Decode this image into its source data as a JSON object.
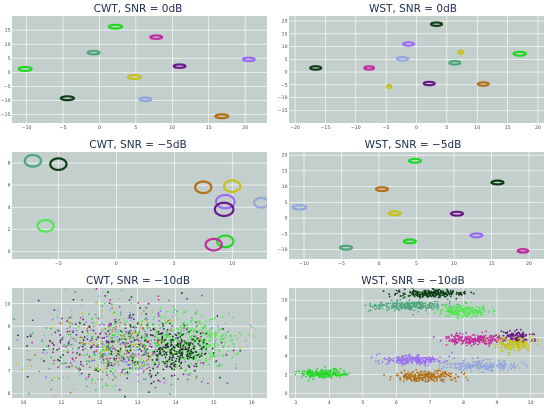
{
  "colors": {
    "plot_bg": "#c3cfcd",
    "grid": "#ffffff",
    "palette": [
      "#24d624",
      "#4ba77a",
      "#6a1a8a",
      "#c22c9c",
      "#0d3e14",
      "#c6c01c",
      "#93a7dd",
      "#9a6df4",
      "#b47016",
      "#54e654"
    ]
  },
  "chart_data": [
    {
      "type": "scatter",
      "title": "CWT, SNR = 0dB",
      "xlim": [
        -12,
        23
      ],
      "ylim": [
        -18,
        20
      ],
      "xticks": [
        -10,
        -5,
        0,
        5,
        10,
        15,
        20
      ],
      "yticks": [
        -15,
        -10,
        -5,
        0,
        5,
        10,
        15
      ],
      "clusters": [
        {
          "x": -10.2,
          "y": 1.2,
          "r": 0.9,
          "color": "#24d624"
        },
        {
          "x": -0.8,
          "y": 7.0,
          "r": 0.8,
          "color": "#4ba77a"
        },
        {
          "x": 2.2,
          "y": 16.2,
          "r": 0.9,
          "color": "#24d624"
        },
        {
          "x": 7.8,
          "y": 12.5,
          "r": 0.8,
          "color": "#c22c9c"
        },
        {
          "x": 20.5,
          "y": 4.6,
          "r": 0.8,
          "color": "#9a6df4"
        },
        {
          "x": 11.0,
          "y": 2.2,
          "r": 0.8,
          "color": "#6a1a8a"
        },
        {
          "x": 4.8,
          "y": -1.7,
          "r": 0.9,
          "color": "#c6c01c"
        },
        {
          "x": -4.4,
          "y": -9.2,
          "r": 0.9,
          "color": "#0d3e14"
        },
        {
          "x": 6.3,
          "y": -9.6,
          "r": 0.8,
          "color": "#93a7dd"
        },
        {
          "x": 16.8,
          "y": -15.6,
          "r": 0.9,
          "color": "#b47016"
        }
      ]
    },
    {
      "type": "scatter",
      "title": "WST, SNR = 0dB",
      "xlim": [
        -21,
        21
      ],
      "ylim": [
        -20,
        22
      ],
      "xticks": [
        -20,
        -15,
        -10,
        -5,
        0,
        5,
        10,
        15,
        20
      ],
      "yticks": [
        -15,
        -10,
        -5,
        0,
        5,
        10,
        15,
        20
      ],
      "clusters": [
        {
          "x": 3.3,
          "y": 18.8,
          "r": 0.9,
          "color": "#0d3e14"
        },
        {
          "x": -1.3,
          "y": 11.0,
          "r": 0.9,
          "color": "#9a6df4"
        },
        {
          "x": 7.3,
          "y": 7.8,
          "r": 0.4,
          "color": "#c6c01c"
        },
        {
          "x": 17.0,
          "y": 7.2,
          "r": 1.0,
          "color": "#24d624"
        },
        {
          "x": -2.3,
          "y": 5.2,
          "r": 0.9,
          "color": "#93a7dd"
        },
        {
          "x": 6.3,
          "y": 3.6,
          "r": 0.9,
          "color": "#4ba77a"
        },
        {
          "x": -16.6,
          "y": 1.6,
          "r": 0.9,
          "color": "#0d3e14"
        },
        {
          "x": -7.8,
          "y": 1.6,
          "r": 0.8,
          "color": "#c22c9c"
        },
        {
          "x": -4.5,
          "y": -5.7,
          "r": 0.3,
          "color": "#c6c01c"
        },
        {
          "x": 2.1,
          "y": -4.5,
          "r": 0.9,
          "color": "#6a1a8a"
        },
        {
          "x": 11.0,
          "y": -4.7,
          "r": 0.9,
          "color": "#b47016"
        }
      ]
    },
    {
      "type": "scatter",
      "title": "CWT, SNR = −5dB",
      "xlim": [
        -9,
        13
      ],
      "ylim": [
        -0.7,
        9.0
      ],
      "xticks": [
        -5,
        0,
        5,
        10
      ],
      "yticks": [
        0,
        2,
        4,
        6,
        8
      ],
      "clusters": [
        {
          "x": -7.2,
          "y": 8.2,
          "r": 0.7,
          "color": "#4ba77a"
        },
        {
          "x": -5.0,
          "y": 7.9,
          "r": 0.7,
          "color": "#0d3e14"
        },
        {
          "x": 7.5,
          "y": 5.8,
          "r": 0.7,
          "color": "#b47016"
        },
        {
          "x": 10.0,
          "y": 5.9,
          "r": 0.7,
          "color": "#c6c01c"
        },
        {
          "x": 9.4,
          "y": 4.5,
          "r": 0.8,
          "color": "#9a6df4"
        },
        {
          "x": 9.3,
          "y": 3.8,
          "r": 0.8,
          "color": "#6a1a8a"
        },
        {
          "x": 12.5,
          "y": 4.4,
          "r": 0.6,
          "color": "#93a7dd"
        },
        {
          "x": -6.1,
          "y": 2.3,
          "r": 0.7,
          "color": "#54e654"
        },
        {
          "x": 9.4,
          "y": 0.9,
          "r": 0.7,
          "color": "#24d624"
        },
        {
          "x": 8.4,
          "y": 0.6,
          "r": 0.7,
          "color": "#c22c9c"
        }
      ]
    },
    {
      "type": "scatter",
      "title": "WST, SNR = −5dB",
      "xlim": [
        -12,
        22
      ],
      "ylim": [
        -13,
        21
      ],
      "xticks": [
        -10,
        -5,
        0,
        5,
        10,
        15,
        20
      ],
      "yticks": [
        -10,
        -5,
        0,
        5,
        10,
        15,
        20
      ],
      "clusters": [
        {
          "x": 4.8,
          "y": 18.2,
          "r": 0.8,
          "color": "#24d624"
        },
        {
          "x": 15.8,
          "y": 11.3,
          "r": 0.8,
          "color": "#0d3e14"
        },
        {
          "x": 0.4,
          "y": 9.2,
          "r": 0.8,
          "color": "#b47016"
        },
        {
          "x": -10.6,
          "y": 3.4,
          "r": 0.9,
          "color": "#93a7dd"
        },
        {
          "x": 2.1,
          "y": 1.5,
          "r": 0.8,
          "color": "#c6c01c"
        },
        {
          "x": 10.4,
          "y": 1.4,
          "r": 0.8,
          "color": "#6a1a8a"
        },
        {
          "x": 4.1,
          "y": -7.4,
          "r": 0.8,
          "color": "#24d624"
        },
        {
          "x": 13.0,
          "y": -5.5,
          "r": 0.8,
          "color": "#9a6df4"
        },
        {
          "x": -4.4,
          "y": -9.4,
          "r": 0.8,
          "color": "#4ba77a"
        },
        {
          "x": 19.2,
          "y": -10.4,
          "r": 0.7,
          "color": "#c22c9c"
        }
      ]
    },
    {
      "type": "scatter",
      "title": "CWT, SNR = −10dB",
      "xlim": [
        9.7,
        16.4
      ],
      "ylim": [
        5.8,
        10.7
      ],
      "xticks": [
        10,
        11,
        12,
        13,
        14,
        15,
        16
      ],
      "yticks": [
        6,
        7,
        8,
        9,
        10
      ],
      "clusters": [
        {
          "x": 12.6,
          "y": 8.1,
          "rx": 2.6,
          "ry": 1.9,
          "n": 1100,
          "color": "mixed"
        },
        {
          "x": 14.5,
          "y": 8.4,
          "rx": 1.2,
          "ry": 1.2,
          "n": 320,
          "color": "#54e654"
        },
        {
          "x": 14.1,
          "y": 7.9,
          "rx": 0.9,
          "ry": 1.0,
          "n": 220,
          "color": "#0d3e14"
        }
      ]
    },
    {
      "type": "scatter",
      "title": "WST, SNR = −10dB",
      "xlim": [
        2.8,
        10.4
      ],
      "ylim": [
        -0.5,
        11.3
      ],
      "xticks": [
        3,
        4,
        5,
        6,
        7,
        8,
        9,
        10
      ],
      "yticks": [
        0,
        2,
        4,
        6,
        8,
        10
      ],
      "clusters": [
        {
          "x": 7.0,
          "y": 10.7,
          "rx": 1.1,
          "ry": 0.45,
          "n": 220,
          "color": "#0d3e14"
        },
        {
          "x": 6.3,
          "y": 9.4,
          "rx": 1.2,
          "ry": 0.6,
          "n": 260,
          "color": "#4ba77a"
        },
        {
          "x": 8.0,
          "y": 8.8,
          "rx": 0.8,
          "ry": 0.7,
          "n": 220,
          "color": "#54e654"
        },
        {
          "x": 8.4,
          "y": 5.8,
          "rx": 1.0,
          "ry": 0.6,
          "n": 240,
          "color": "#c22c9c"
        },
        {
          "x": 9.5,
          "y": 5.4,
          "rx": 0.7,
          "ry": 0.9,
          "n": 200,
          "color": "#c6c01c"
        },
        {
          "x": 9.6,
          "y": 6.2,
          "rx": 0.5,
          "ry": 0.6,
          "n": 90,
          "color": "#6a1a8a"
        },
        {
          "x": 6.5,
          "y": 3.6,
          "rx": 1.0,
          "ry": 0.55,
          "n": 220,
          "color": "#9a6df4"
        },
        {
          "x": 8.5,
          "y": 3.0,
          "rx": 1.2,
          "ry": 0.6,
          "n": 240,
          "color": "#93a7dd"
        },
        {
          "x": 6.9,
          "y": 1.8,
          "rx": 1.1,
          "ry": 0.6,
          "n": 240,
          "color": "#b47016"
        },
        {
          "x": 3.8,
          "y": 2.1,
          "rx": 0.75,
          "ry": 0.55,
          "n": 200,
          "color": "#24d624"
        }
      ]
    }
  ]
}
